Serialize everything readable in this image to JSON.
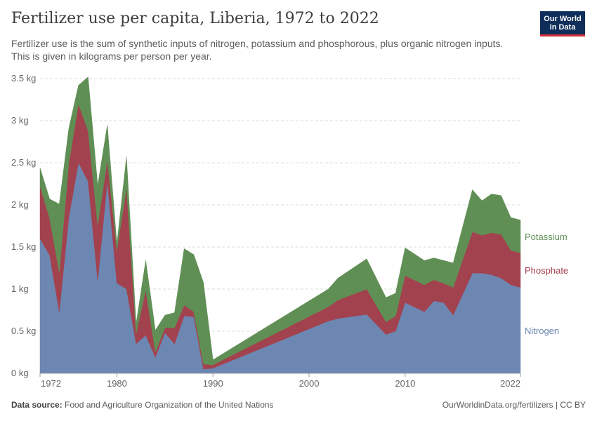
{
  "header": {
    "title": "Fertilizer use per capita, Liberia, 1972 to 2022",
    "subtitle": "Fertilizer use is the sum of synthetic inputs of nitrogen, potassium and phosphorous, plus organic nitrogen inputs. This is given in kilograms per person per year."
  },
  "logo": {
    "line1": "Our World",
    "line2": "in Data"
  },
  "footer": {
    "source_label": "Data source:",
    "source_text": "Food and Agriculture Organization of the United Nations",
    "link": "OurWorldinData.org/fertilizers | CC BY"
  },
  "colors": {
    "Nitrogen": "#6d87b3",
    "Phosphate": "#a2424e",
    "Potassium": "#608f55"
  },
  "chart_data": {
    "type": "area",
    "stacked": true,
    "x": [
      1972,
      1973,
      1974,
      1975,
      1976,
      1977,
      1978,
      1979,
      1980,
      1981,
      1982,
      1983,
      1984,
      1985,
      1986,
      1987,
      1988,
      1989,
      1990,
      2002,
      2003,
      2006,
      2008,
      2009,
      2010,
      2012,
      2013,
      2014,
      2015,
      2017,
      2018,
      2019,
      2020,
      2021,
      2022
    ],
    "series": [
      {
        "name": "Nitrogen",
        "values": [
          1.6,
          1.4,
          0.73,
          1.85,
          2.5,
          2.28,
          1.1,
          2.28,
          1.07,
          1.0,
          0.35,
          0.45,
          0.19,
          0.48,
          0.35,
          0.68,
          0.67,
          0.05,
          0.06,
          0.62,
          0.65,
          0.7,
          0.46,
          0.5,
          0.84,
          0.73,
          0.86,
          0.84,
          0.69,
          1.19,
          1.19,
          1.17,
          1.13,
          1.05,
          1.02
        ]
      },
      {
        "name": "Phosphate",
        "values": [
          0.62,
          0.44,
          0.47,
          0.64,
          0.7,
          0.6,
          0.66,
          0.25,
          0.39,
          1.2,
          0.12,
          0.54,
          0.06,
          0.06,
          0.19,
          0.13,
          0.06,
          0.06,
          0.04,
          0.17,
          0.22,
          0.3,
          0.15,
          0.18,
          0.32,
          0.32,
          0.25,
          0.23,
          0.33,
          0.49,
          0.45,
          0.5,
          0.52,
          0.41,
          0.41
        ]
      },
      {
        "name": "Potassium",
        "values": [
          0.22,
          0.23,
          0.81,
          0.42,
          0.22,
          0.64,
          0.47,
          0.42,
          0.08,
          0.37,
          0.12,
          0.35,
          0.26,
          0.15,
          0.18,
          0.67,
          0.68,
          0.97,
          0.06,
          0.21,
          0.26,
          0.36,
          0.29,
          0.27,
          0.33,
          0.29,
          0.26,
          0.27,
          0.29,
          0.5,
          0.41,
          0.46,
          0.46,
          0.39,
          0.39
        ]
      }
    ],
    "x_ticks": [
      {
        "value": 1972,
        "label": "1972"
      },
      {
        "value": 1980,
        "label": "1980"
      },
      {
        "value": 1990,
        "label": "1990"
      },
      {
        "value": 2000,
        "label": "2000"
      },
      {
        "value": 2010,
        "label": "2010"
      },
      {
        "value": 2022,
        "label": "2022"
      }
    ],
    "y_ticks": [
      {
        "value": 0,
        "label": "0 kg"
      },
      {
        "value": 0.5,
        "label": "0.5 kg"
      },
      {
        "value": 1,
        "label": "1 kg"
      },
      {
        "value": 1.5,
        "label": "1.5 kg"
      },
      {
        "value": 2,
        "label": "2 kg"
      },
      {
        "value": 2.5,
        "label": "2.5 kg"
      },
      {
        "value": 3,
        "label": "3 kg"
      },
      {
        "value": 3.5,
        "label": "3.5 kg"
      }
    ],
    "xlim": [
      1972,
      2022
    ],
    "ylim": [
      0,
      3.5
    ],
    "grid": "horizontal dashed",
    "legend": "right, inline labels"
  }
}
